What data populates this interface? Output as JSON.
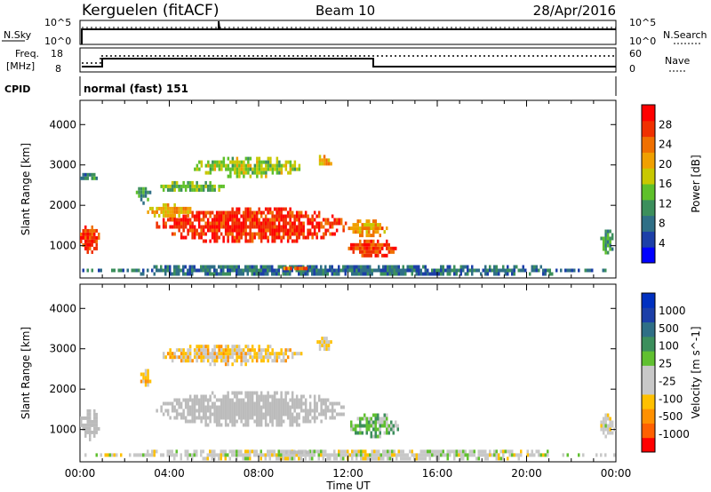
{
  "header": {
    "station": "Kerguelen (fitACF)",
    "beam": "Beam 10",
    "date": "28/Apr/2016"
  },
  "noise_panel": {
    "left_label": "N.Sky",
    "left_ticks": [
      "10^5",
      "10^0"
    ],
    "right_ticks": [
      "10^5",
      "10^0"
    ],
    "right_label": "N.Search"
  },
  "freq_panel": {
    "left_label_1": "Freq.",
    "left_label_2": "[MHz]",
    "left_ticks": [
      "18",
      "8"
    ],
    "right_ticks": [
      "60",
      "0"
    ],
    "right_label": "Nave"
  },
  "cpid_panel": {
    "label": "CPID",
    "text": "normal (fast) 151"
  },
  "colors": {
    "power_scale": [
      "#0000ff",
      "#1c3fa8",
      "#2f6f86",
      "#3c8f5c",
      "#5ec02a",
      "#c8c800",
      "#f0a000",
      "#f07000",
      "#f03000",
      "#ff0000"
    ],
    "velocity_scale": [
      "#ff0000",
      "#ff6000",
      "#ff9000",
      "#ffc000",
      "#c8c8c8",
      "#c8c8c8",
      "#60c030",
      "#3c8f5c",
      "#2f6f86",
      "#1c3fa8",
      "#0030c0"
    ],
    "ground_scatter": "#bbbbbb"
  },
  "chart_data": [
    {
      "type": "heatmap",
      "name": "power",
      "ylabel": "Slant Range [km]",
      "yticks": [
        "4000",
        "3000",
        "2000",
        "1000"
      ],
      "ylim": [
        200,
        4600
      ],
      "xlim": [
        0,
        24
      ],
      "colorbar": {
        "label": "Power [dB]",
        "ticks": [
          "28",
          "24",
          "20",
          "16",
          "12",
          "8",
          "4"
        ],
        "range": [
          0,
          32
        ]
      },
      "blobs": [
        {
          "t0": 0.0,
          "t1": 0.9,
          "r0": 750,
          "r1": 1500,
          "v": 27
        },
        {
          "t0": 0.0,
          "t1": 0.8,
          "r0": 2600,
          "r1": 2800,
          "v": 10
        },
        {
          "t0": 3.4,
          "t1": 12.0,
          "r0": 1050,
          "r1": 1950,
          "v": 28
        },
        {
          "t0": 3.0,
          "t1": 5.0,
          "r0": 1650,
          "r1": 2050,
          "v": 20
        },
        {
          "t0": 5.0,
          "t1": 10.0,
          "r0": 2700,
          "r1": 3200,
          "v": 16
        },
        {
          "t0": 3.5,
          "t1": 6.5,
          "r0": 2300,
          "r1": 2600,
          "v": 14
        },
        {
          "t0": 2.5,
          "t1": 3.2,
          "r0": 2050,
          "r1": 2450,
          "v": 12
        },
        {
          "t0": 10.6,
          "t1": 11.3,
          "r0": 2950,
          "r1": 3250,
          "v": 20
        },
        {
          "t0": 12.0,
          "t1": 14.2,
          "r0": 700,
          "r1": 1150,
          "v": 27
        },
        {
          "t0": 12.0,
          "t1": 13.8,
          "r0": 1200,
          "r1": 1650,
          "v": 22
        },
        {
          "t0": 0.0,
          "t1": 24.0,
          "r0": 250,
          "r1": 520,
          "v": 8
        },
        {
          "t0": 23.3,
          "t1": 24.0,
          "r0": 800,
          "r1": 1400,
          "v": 12
        },
        {
          "t0": 9.0,
          "t1": 10.3,
          "r0": 350,
          "r1": 480,
          "v": 24
        }
      ]
    },
    {
      "type": "heatmap",
      "name": "velocity",
      "ylabel": "Slant Range [km]",
      "yticks": [
        "4000",
        "3000",
        "2000",
        "1000"
      ],
      "ylim": [
        200,
        4600
      ],
      "xlim": [
        0,
        24
      ],
      "xlabel": "Time UT",
      "xticks": [
        "00:00",
        "04:00",
        "08:00",
        "12:00",
        "16:00",
        "20:00",
        "00:00"
      ],
      "colorbar": {
        "label": "Velocity [m s^-1]",
        "ticks": [
          "1000",
          "500",
          "100",
          "25",
          "-25",
          "-100",
          "-500",
          "-1000"
        ],
        "range": [
          -1000,
          1000
        ]
      },
      "blobs": [
        {
          "t0": 0.0,
          "t1": 0.9,
          "r0": 750,
          "r1": 1500,
          "v": 0,
          "ground": true
        },
        {
          "t0": 3.4,
          "t1": 12.0,
          "r0": 1050,
          "r1": 1950,
          "v": 0,
          "ground": true
        },
        {
          "t0": 12.0,
          "t1": 14.3,
          "r0": 800,
          "r1": 1400,
          "v": 200
        },
        {
          "t0": 3.5,
          "t1": 10.0,
          "r0": 2600,
          "r1": 3100,
          "v": -300
        },
        {
          "t0": 10.6,
          "t1": 11.3,
          "r0": 2950,
          "r1": 3300,
          "v": -200
        },
        {
          "t0": 2.7,
          "t1": 3.2,
          "r0": 2000,
          "r1": 2500,
          "v": -400
        },
        {
          "t0": 0.0,
          "t1": 24.0,
          "r0": 250,
          "r1": 500,
          "v": -100
        },
        {
          "t0": 9.0,
          "t1": 10.3,
          "r0": 350,
          "r1": 480,
          "v": 0,
          "ground": true
        },
        {
          "t0": 23.3,
          "t1": 24.0,
          "r0": 800,
          "r1": 1400,
          "v": -100
        }
      ]
    }
  ]
}
